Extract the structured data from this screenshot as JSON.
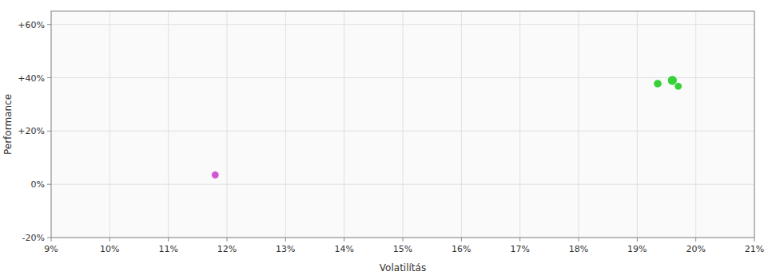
{
  "chart_data": {
    "type": "scatter",
    "xlabel": "Volatilítás",
    "ylabel": "Performance",
    "x": [
      0.118,
      0.1935,
      0.196,
      0.197
    ],
    "values": [
      0.035,
      0.378,
      0.39,
      0.368
    ],
    "sizes": [
      18,
      22,
      32,
      18
    ],
    "colors": [
      "#cc44cc",
      "#22cc22",
      "#22cc22",
      "#22cc22"
    ],
    "xlim": [
      0.09,
      0.21
    ],
    "ylim": [
      -0.2,
      0.65
    ],
    "xticks": [
      {
        "value": 0.09,
        "label": "9%"
      },
      {
        "value": 0.1,
        "label": "10%"
      },
      {
        "value": 0.11,
        "label": "11%"
      },
      {
        "value": 0.12,
        "label": "12%"
      },
      {
        "value": 0.13,
        "label": "13%"
      },
      {
        "value": 0.14,
        "label": "14%"
      },
      {
        "value": 0.15,
        "label": "15%"
      },
      {
        "value": 0.16,
        "label": "16%"
      },
      {
        "value": 0.17,
        "label": "17%"
      },
      {
        "value": 0.18,
        "label": "18%"
      },
      {
        "value": 0.19,
        "label": "19%"
      },
      {
        "value": 0.2,
        "label": "20%"
      },
      {
        "value": 0.21,
        "label": "21%"
      }
    ],
    "yticks": [
      {
        "value": -0.2,
        "label": "-20%"
      },
      {
        "value": 0.0,
        "label": "0%"
      },
      {
        "value": 0.2,
        "label": "+20%"
      },
      {
        "value": 0.4,
        "label": "+40%"
      },
      {
        "value": 0.6,
        "label": "+60%"
      }
    ],
    "grid": true
  }
}
